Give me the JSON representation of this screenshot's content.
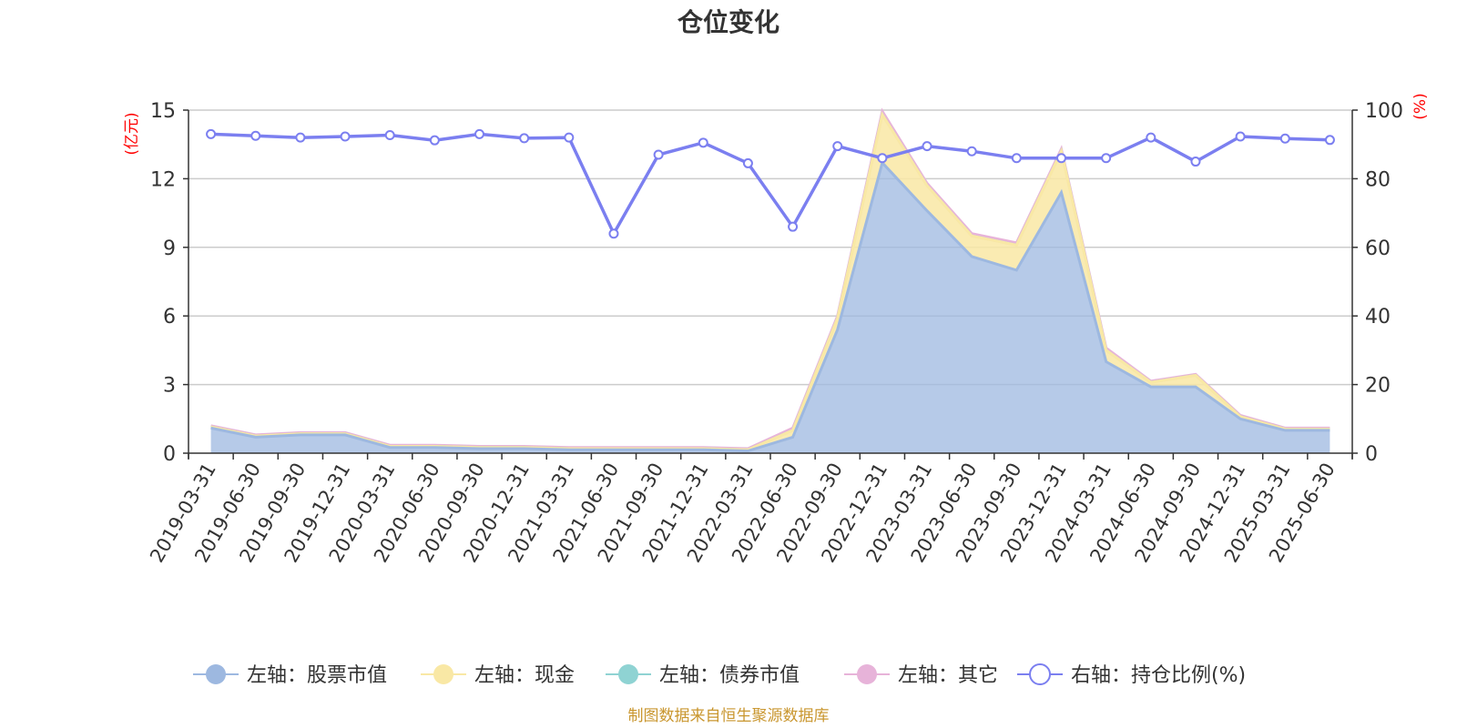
{
  "colors": {
    "stock": "#9db8e0",
    "cash": "#f9e8a5",
    "bond": "#8fd3d3",
    "other": "#e7b3d9",
    "ratio": "#7b7ff0",
    "axis_unit": "#ff0000",
    "source": "#c9962e",
    "grid": "#cccccc",
    "axis": "#333333"
  },
  "chart_data": {
    "type": "area",
    "title": "仓位变化",
    "left_axis_label": "(亿元)",
    "right_axis_label": "(%)",
    "left_ylim": [
      0,
      15
    ],
    "left_ticks": [
      0,
      3,
      6,
      9,
      12,
      15
    ],
    "right_ylim": [
      0,
      100
    ],
    "right_ticks": [
      0,
      20,
      40,
      60,
      80,
      100
    ],
    "grid": true,
    "legend_position": "bottom",
    "x": [
      "2019-03-31",
      "2019-06-30",
      "2019-09-30",
      "2019-12-31",
      "2020-03-31",
      "2020-06-30",
      "2020-09-30",
      "2020-12-31",
      "2021-03-31",
      "2021-06-30",
      "2021-09-30",
      "2021-12-31",
      "2022-03-31",
      "2022-06-30",
      "2022-09-30",
      "2022-12-31",
      "2023-03-31",
      "2023-06-30",
      "2023-09-30",
      "2023-12-31",
      "2024-03-31",
      "2024-06-30",
      "2024-09-30",
      "2024-12-31",
      "2025-03-31",
      "2025-06-30"
    ],
    "series": [
      {
        "key": "stock",
        "name": "左轴：股票市值",
        "axis": "left",
        "kind": "area",
        "values": [
          1.1,
          0.7,
          0.8,
          0.8,
          0.25,
          0.25,
          0.2,
          0.2,
          0.15,
          0.15,
          0.15,
          0.15,
          0.1,
          0.7,
          5.4,
          12.7,
          10.6,
          8.6,
          8.0,
          11.4,
          4.0,
          2.9,
          2.9,
          1.5,
          1.0,
          1.0
        ]
      },
      {
        "key": "cash",
        "name": "左轴：现金",
        "axis": "left",
        "kind": "area",
        "values": [
          0.05,
          0.05,
          0.05,
          0.05,
          0.05,
          0.05,
          0.05,
          0.05,
          0.05,
          0.05,
          0.05,
          0.05,
          0.05,
          0.3,
          0.5,
          2.1,
          1.1,
          0.9,
          1.1,
          1.8,
          0.5,
          0.2,
          0.5,
          0.1,
          0.05,
          0.05
        ]
      },
      {
        "key": "bond",
        "name": "左轴：债券市值",
        "axis": "left",
        "kind": "area",
        "values": [
          0,
          0,
          0,
          0,
          0,
          0,
          0,
          0,
          0,
          0,
          0,
          0,
          0,
          0,
          0,
          0,
          0,
          0,
          0,
          0,
          0,
          0,
          0,
          0,
          0,
          0
        ]
      },
      {
        "key": "other",
        "name": "左轴：其它",
        "axis": "left",
        "kind": "area",
        "values": [
          0.05,
          0.05,
          0.05,
          0.05,
          0.05,
          0.05,
          0.05,
          0.05,
          0.05,
          0.05,
          0.05,
          0.05,
          0.05,
          0.1,
          0.1,
          0.15,
          0.1,
          0.1,
          0.1,
          0.1,
          0.1,
          0.05,
          0.05,
          0.05,
          0.05,
          0.05
        ]
      },
      {
        "key": "ratio",
        "name": "右轴：持仓比例(%)",
        "axis": "right",
        "kind": "line",
        "values": [
          93,
          92.5,
          92,
          92.3,
          92.7,
          91.2,
          93,
          91.8,
          92,
          64,
          87,
          90.5,
          84.5,
          66,
          89.5,
          86,
          89.5,
          88,
          86,
          86,
          86,
          92,
          85,
          92.3,
          91.7,
          91.3
        ]
      }
    ]
  },
  "source_note": "制图数据来自恒生聚源数据库"
}
